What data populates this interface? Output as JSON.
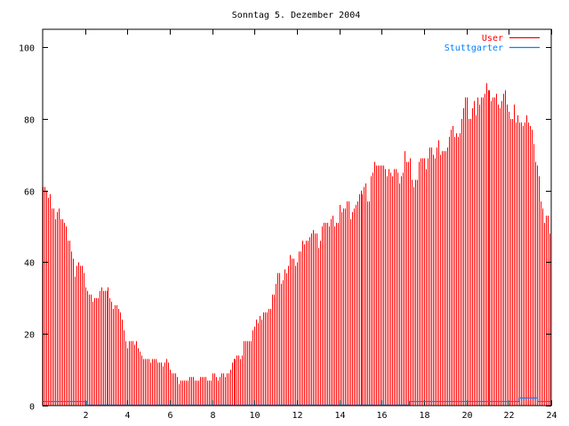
{
  "chart_data": {
    "type": "bar",
    "title": "Sonntag 5. Dezember 2004",
    "xlabel": "",
    "ylabel": "",
    "xlim": [
      0,
      24
    ],
    "ylim": [
      0,
      105
    ],
    "x_ticks": [
      "2",
      "4",
      "6",
      "8",
      "10",
      "12",
      "14",
      "16",
      "18",
      "20",
      "22",
      "24"
    ],
    "x_tick_values": [
      2,
      4,
      6,
      8,
      10,
      12,
      14,
      16,
      18,
      20,
      22,
      24
    ],
    "y_ticks": [
      "0",
      "20",
      "40",
      "60",
      "80",
      "100"
    ],
    "y_tick_values": [
      0,
      20,
      40,
      60,
      80,
      100
    ],
    "grid": false,
    "legend_position": "top-right",
    "interval_minutes": 5,
    "series": [
      {
        "name": "User",
        "style": "impulses",
        "color": "#ff0000",
        "values": [
          61,
          61,
          60,
          58,
          59,
          55,
          55,
          52,
          54,
          55,
          52,
          52,
          51,
          50,
          46,
          46,
          43,
          41,
          36,
          39,
          40,
          39,
          39,
          37,
          33,
          32,
          31,
          31,
          29,
          30,
          30,
          30,
          32,
          33,
          32,
          32,
          32,
          33,
          30,
          29,
          27,
          28,
          28,
          27,
          26,
          24,
          21,
          18,
          16,
          18,
          18,
          18,
          17,
          18,
          16,
          15,
          14,
          13,
          13,
          13,
          13,
          12,
          13,
          13,
          13,
          12,
          12,
          12,
          11,
          12,
          13,
          12,
          10,
          9,
          9,
          9,
          8,
          6,
          7,
          7,
          7,
          7,
          7,
          8,
          8,
          8,
          7,
          7,
          7,
          8,
          8,
          8,
          8,
          7,
          7,
          7,
          9,
          9,
          8,
          7,
          8,
          9,
          9,
          8,
          9,
          9,
          10,
          12,
          13,
          13,
          14,
          14,
          13,
          14,
          18,
          18,
          18,
          18,
          18,
          21,
          22,
          24,
          23,
          25,
          24,
          26,
          26,
          26,
          27,
          27,
          31,
          31,
          34,
          37,
          37,
          34,
          35,
          38,
          37,
          39,
          42,
          41,
          41,
          39,
          40,
          43,
          43,
          46,
          45,
          46,
          46,
          47,
          48,
          49,
          48,
          48,
          44,
          46,
          50,
          51,
          51,
          51,
          50,
          52,
          53,
          50,
          51,
          51,
          56,
          54,
          55,
          55,
          57,
          57,
          52,
          54,
          55,
          56,
          57,
          59,
          60,
          59,
          61,
          62,
          57,
          57,
          64,
          65,
          68,
          67,
          67,
          67,
          67,
          67,
          66,
          64,
          66,
          65,
          64,
          66,
          66,
          65,
          62,
          64,
          65,
          71,
          68,
          68,
          69,
          63,
          61,
          63,
          63,
          68,
          69,
          69,
          69,
          66,
          69,
          72,
          72,
          70,
          69,
          72,
          74,
          70,
          71,
          71,
          71,
          72,
          75,
          77,
          78,
          75,
          76,
          75,
          76,
          80,
          83,
          86,
          86,
          80,
          80,
          83,
          85,
          81,
          86,
          84,
          86,
          86,
          87,
          90,
          88,
          88,
          85,
          86,
          86,
          87,
          84,
          83,
          85,
          87,
          88,
          84,
          82,
          80,
          80,
          84,
          79,
          81,
          79,
          79,
          78,
          79,
          81,
          79,
          78,
          77,
          73,
          68,
          67,
          64,
          57,
          55,
          51,
          53,
          53,
          48
        ]
      },
      {
        "name": "Stuttgarter",
        "style": "steps",
        "color": "#0080ff",
        "points": [
          [
            0,
            1
          ],
          [
            2.1,
            1
          ],
          [
            2.1,
            0
          ],
          [
            17.3,
            0
          ],
          [
            17.3,
            1
          ],
          [
            22.5,
            1
          ],
          [
            22.5,
            2
          ],
          [
            23.35,
            2
          ],
          [
            23.35,
            1
          ],
          [
            24,
            1
          ]
        ]
      }
    ]
  }
}
